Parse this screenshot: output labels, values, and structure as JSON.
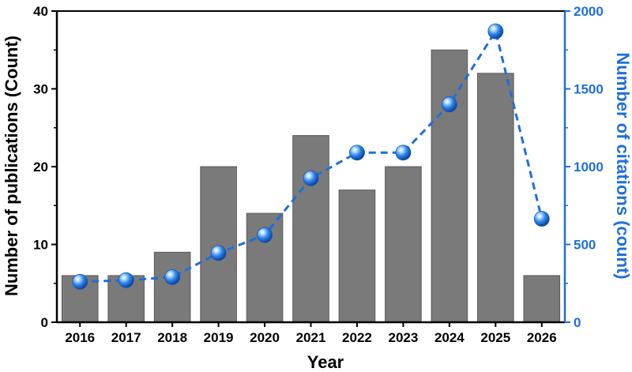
{
  "chart_data": {
    "type": "bar",
    "xlabel": "Year",
    "categories": [
      "2016",
      "2017",
      "2018",
      "2019",
      "2020",
      "2021",
      "2022",
      "2023",
      "2024",
      "2025",
      "2026"
    ],
    "series": [
      {
        "axis": "left",
        "chart_type": "bar",
        "values": [
          6,
          6,
          9,
          20,
          14,
          24,
          17,
          20,
          35,
          32,
          6
        ],
        "color": "#7a7a7a"
      },
      {
        "axis": "right",
        "chart_type": "line",
        "line_style": "dashed",
        "marker": "sphere",
        "values": [
          260,
          270,
          290,
          445,
          560,
          925,
          1090,
          1090,
          1400,
          1870,
          665
        ],
        "color": "#1e6fd9"
      }
    ],
    "y_left": {
      "label": "Number of publications (Count)",
      "ylim": [
        0,
        40
      ],
      "ticks": [
        "0",
        "10",
        "20",
        "30",
        "40"
      ],
      "color": "#000000"
    },
    "y_right": {
      "label": "Number of citations (count)",
      "ylim": [
        0,
        2000
      ],
      "ticks": [
        "0",
        "500",
        "1000",
        "1500",
        "2000"
      ],
      "color": "#1e6fd9"
    },
    "grid": false,
    "legend": "none"
  }
}
